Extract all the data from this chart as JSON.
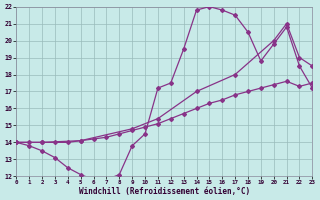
{
  "xlabel": "Windchill (Refroidissement éolien,°C)",
  "xlim": [
    0,
    23
  ],
  "ylim": [
    12,
    22
  ],
  "xtick_vals": [
    0,
    1,
    2,
    3,
    4,
    5,
    6,
    7,
    8,
    9,
    10,
    11,
    12,
    13,
    14,
    15,
    16,
    17,
    18,
    19,
    20,
    21,
    22,
    23
  ],
  "ytick_vals": [
    12,
    13,
    14,
    15,
    16,
    17,
    18,
    19,
    20,
    21,
    22
  ],
  "bg_color": "#c8eae8",
  "line_color": "#883388",
  "grid_color": "#99bbbb",
  "line1_x": [
    0,
    1,
    2,
    3,
    4,
    5,
    6,
    7,
    8,
    9,
    10,
    11,
    12,
    13,
    14,
    15,
    16,
    17,
    18,
    19,
    20,
    21,
    22,
    23
  ],
  "line1_y": [
    14.0,
    13.8,
    13.5,
    13.1,
    12.5,
    12.1,
    11.8,
    11.8,
    12.1,
    13.8,
    14.5,
    17.2,
    17.5,
    19.5,
    21.8,
    22.0,
    21.8,
    21.5,
    20.5,
    18.8,
    19.8,
    20.8,
    18.5,
    17.2
  ],
  "line2_x": [
    0,
    1,
    2,
    3,
    4,
    5,
    6,
    7,
    8,
    9,
    10,
    11,
    12,
    13,
    14,
    15,
    16,
    17,
    18,
    19,
    20,
    21,
    22,
    23
  ],
  "line2_y": [
    14.0,
    14.0,
    14.0,
    14.0,
    14.0,
    14.1,
    14.2,
    14.3,
    14.5,
    14.7,
    14.9,
    15.1,
    15.4,
    15.7,
    16.0,
    16.3,
    16.5,
    16.8,
    17.0,
    17.2,
    17.4,
    17.6,
    17.3,
    17.5
  ],
  "line3_x": [
    0,
    2,
    5,
    9,
    11,
    14,
    17,
    20,
    21,
    22,
    23
  ],
  "line3_y": [
    14.0,
    14.0,
    14.1,
    14.8,
    15.4,
    17.0,
    18.0,
    20.0,
    21.0,
    19.0,
    18.5
  ]
}
